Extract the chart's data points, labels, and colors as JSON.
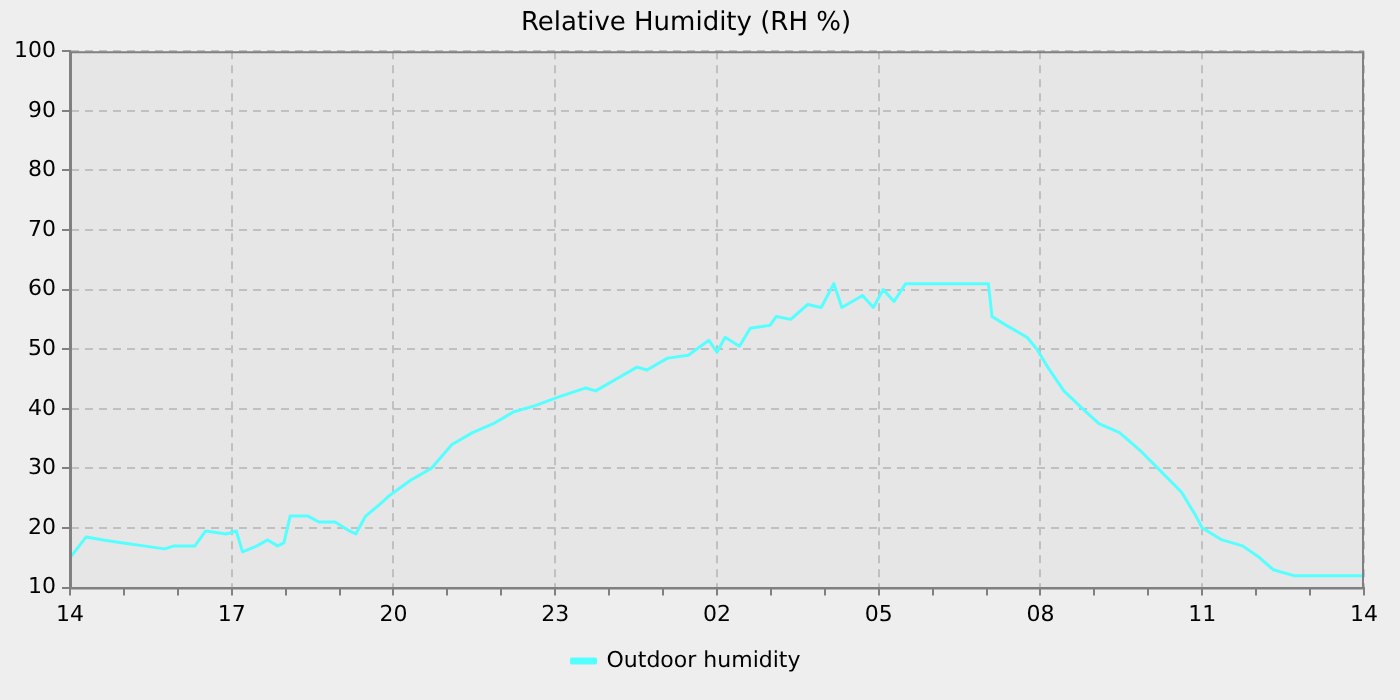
{
  "chart_data": {
    "type": "line",
    "title": "Relative Humidity (RH %)",
    "x": [
      "--01-01T14:00",
      "--01-01T14:18",
      "--01-01T14:37",
      "--01-01T14:59",
      "--01-01T15:22",
      "--01-01T15:45",
      "--01-01T15:56",
      "--01-01T16:19",
      "--01-01T16:31",
      "--01-01T16:54",
      "--01-01T17:05",
      "--01-01T17:12",
      "--01-01T17:28",
      "--01-01T17:40",
      "--01-01T17:51",
      "--01-01T17:58",
      "--01-01T18:05",
      "--01-01T18:25",
      "--01-01T18:37",
      "--01-01T18:55",
      "--01-01T19:11",
      "--01-01T19:18",
      "--01-01T19:29",
      "--01-01T19:45",
      "--01-01T19:56",
      "--01-01T20:19",
      "--01-01T20:42",
      "--01-01T21:05",
      "--01-01T21:28",
      "--01-01T21:51",
      "--01-01T22:14",
      "--01-01T22:37",
      "--01-01T23:04",
      "--01-01T23:34",
      "--01-01T23:45",
      "--01-02T00:08",
      "--01-02T00:31",
      "--01-02T00:42",
      "--01-02T01:05",
      "--01-02T01:28",
      "--01-02T01:51",
      "--01-02T02:00",
      "--01-02T02:09",
      "--01-02T02:25",
      "--01-02T02:37",
      "--01-02T02:59",
      "--01-02T03:06",
      "--01-02T03:22",
      "--01-02T03:41",
      "--01-02T03:56",
      "--01-02T04:10",
      "--01-02T04:19",
      "--01-02T04:42",
      "--01-02T04:54",
      "--01-02T05:05",
      "--01-02T05:17",
      "--01-02T05:30",
      "--01-02T07:02",
      "--01-02T07:06",
      "--01-02T07:22",
      "--01-02T07:45",
      "--01-02T07:56",
      "--01-02T08:08",
      "--01-02T08:26",
      "--01-02T08:47",
      "--01-02T09:05",
      "--01-02T09:28",
      "--01-02T09:51",
      "--01-02T10:14",
      "--01-02T10:37",
      "--01-02T10:53",
      "--01-02T11:00",
      "--01-02T11:22",
      "--01-02T11:45",
      "--01-02T12:04",
      "--01-02T12:19",
      "--01-02T12:42",
      "--01-02T14:00"
    ],
    "series": [
      {
        "name": "Outdoor humidity",
        "color": "#55ffff",
        "values": [
          15,
          18.5,
          18,
          17.5,
          17,
          16.5,
          17,
          17,
          19.5,
          19,
          19.5,
          16,
          17,
          18,
          17,
          17.5,
          22,
          22,
          21,
          21,
          19.5,
          19,
          22,
          24,
          25.5,
          28,
          30,
          34,
          36,
          37.5,
          39.5,
          40.5,
          42,
          43.5,
          43,
          45,
          47,
          46.5,
          48.5,
          49,
          51.5,
          49.5,
          52,
          50.5,
          53.5,
          54,
          55.5,
          55,
          57.5,
          57,
          61,
          57,
          59,
          57,
          60,
          58,
          61,
          61,
          55.5,
          54,
          52,
          50,
          47,
          43,
          40,
          37.5,
          36,
          33,
          29.5,
          26,
          22,
          20,
          18,
          17,
          15,
          13,
          12,
          12
        ]
      }
    ],
    "xlim": [
      "--01-01T14:00",
      "--01-02T14:00"
    ],
    "xticks": [
      {
        "value": "--01-01T14:00",
        "label": "14"
      },
      {
        "value": "--01-01T15:00",
        "label": null
      },
      {
        "value": "--01-01T16:00",
        "label": null
      },
      {
        "value": "--01-01T17:00",
        "label": "17"
      },
      {
        "value": "--01-01T18:00",
        "label": null
      },
      {
        "value": "--01-01T19:00",
        "label": null
      },
      {
        "value": "--01-01T20:00",
        "label": "20"
      },
      {
        "value": "--01-01T21:00",
        "label": null
      },
      {
        "value": "--01-01T22:00",
        "label": null
      },
      {
        "value": "--01-01T23:00",
        "label": "23"
      },
      {
        "value": "--01-02T00:00",
        "label": null
      },
      {
        "value": "--01-02T01:00",
        "label": null
      },
      {
        "value": "--01-02T02:00",
        "label": "02"
      },
      {
        "value": "--01-02T03:00",
        "label": null
      },
      {
        "value": "--01-02T04:00",
        "label": null
      },
      {
        "value": "--01-02T05:00",
        "label": "05"
      },
      {
        "value": "--01-02T06:00",
        "label": null
      },
      {
        "value": "--01-02T07:00",
        "label": null
      },
      {
        "value": "--01-02T08:00",
        "label": "08"
      },
      {
        "value": "--01-02T09:00",
        "label": null
      },
      {
        "value": "--01-02T10:00",
        "label": null
      },
      {
        "value": "--01-02T11:00",
        "label": "11"
      },
      {
        "value": "--01-02T12:00",
        "label": null
      },
      {
        "value": "--01-02T13:00",
        "label": null
      },
      {
        "value": "--01-02T14:00",
        "label": "14"
      }
    ],
    "ylim": [
      10,
      100
    ],
    "yticks": [
      10,
      20,
      30,
      40,
      50,
      60,
      70,
      80,
      90,
      100
    ],
    "grid": true,
    "legend": "bottom",
    "marker": "none",
    "line_style": "solid"
  }
}
